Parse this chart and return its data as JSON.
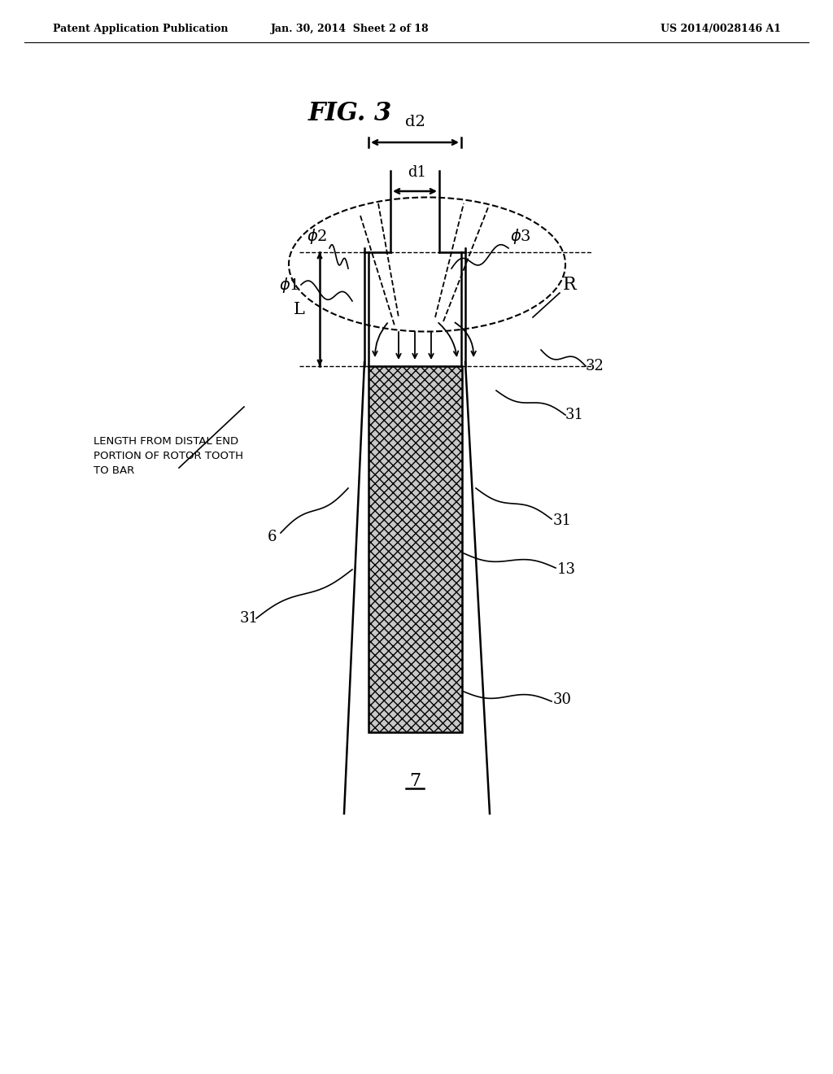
{
  "bg_color": "#ffffff",
  "header_left": "Patent Application Publication",
  "header_mid": "Jan. 30, 2014  Sheet 2 of 18",
  "header_right": "US 2014/0028146 A1",
  "fig_title": "FIG. 3",
  "line_color": "#000000"
}
